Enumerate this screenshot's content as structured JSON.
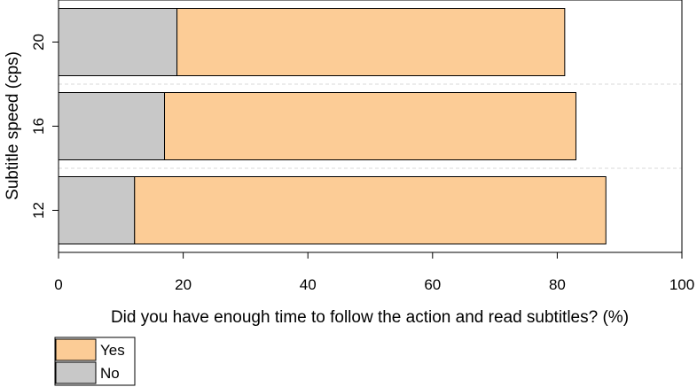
{
  "chart_data": {
    "type": "bar",
    "orientation": "horizontal",
    "stacked": true,
    "categories": [
      "12",
      "16",
      "20"
    ],
    "series": [
      {
        "name": "No",
        "values": [
          12.2,
          17.0,
          19.0
        ],
        "color": "#c8c8c8"
      },
      {
        "name": "Yes",
        "values": [
          75.6,
          66.0,
          62.2
        ],
        "color": "#fccc96"
      }
    ],
    "xlabel": "Did you have enough time to follow the action and read subtitles? (%)",
    "ylabel": "Subtitle speed (cps)",
    "xlim": [
      0,
      100
    ],
    "xticks": [
      "0",
      "20",
      "40",
      "60",
      "80",
      "100"
    ],
    "grid": "horizontal dashed separators between bars",
    "legend_placement": "bottom-left",
    "legend": [
      {
        "label": "Yes",
        "color": "#fccc96"
      },
      {
        "label": "No",
        "color": "#c8c8c8"
      }
    ]
  }
}
